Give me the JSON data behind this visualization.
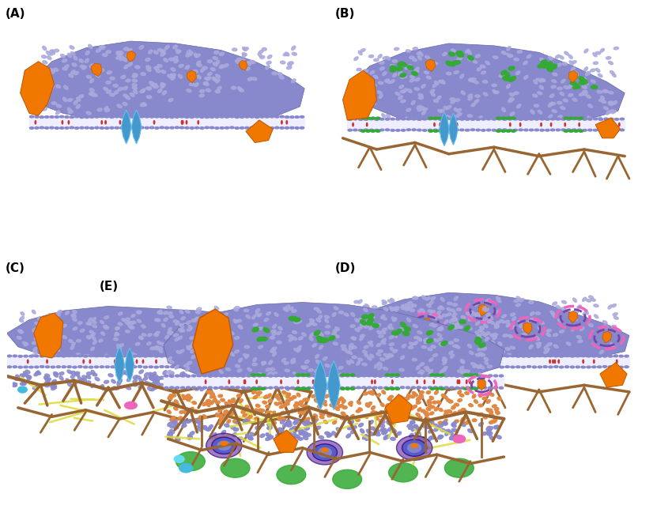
{
  "bg_color": "#ffffff",
  "panels": [
    "(A)",
    "(B)",
    "(C)",
    "(D)",
    "(E)"
  ],
  "lipid_color": "#8888cc",
  "lipid_color_dark": "#6666aa",
  "lipid_color_light": "#aaaadd",
  "orange_protein": "#f07800",
  "blue_protein": "#4499cc",
  "blue_protein2": "#66bbee",
  "green_raft": "#33aa33",
  "red_cholesterol": "#cc3333",
  "brown_skeleton": "#996633",
  "yellow_net": "#dddd44",
  "pink_lipid": "#ee66bb",
  "purple_domain": "#7744aa",
  "membrane_white": "#eeeeff",
  "label_fontsize": 11
}
